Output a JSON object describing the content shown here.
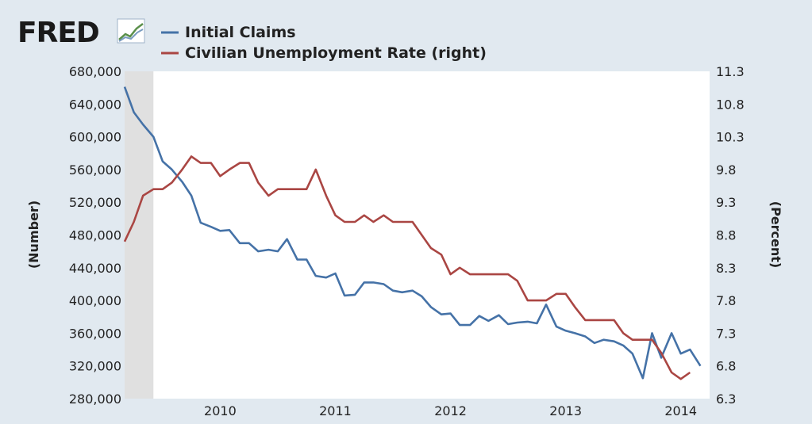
{
  "brand": {
    "logo_text": "FRED"
  },
  "colors": {
    "claims": "#4572a7",
    "unemployment": "#aa4643",
    "background": "#e1e9f0",
    "plot_background": "#ffffff",
    "recession_shade": "#e0e0e0"
  },
  "chart_data": {
    "type": "line",
    "title": "",
    "legend": {
      "placement": "top-left",
      "entries": [
        "Initial Claims",
        "Civilian Unemployment Rate (right)"
      ]
    },
    "xlabel": "",
    "x_ticks": [
      "2010",
      "2011",
      "2012",
      "2013",
      "2014"
    ],
    "x_range": [
      2009.17,
      2014.25
    ],
    "grid": false,
    "recession_shading": [
      [
        2009.17,
        2009.42
      ]
    ],
    "y_left": {
      "label": "(Number)",
      "range": [
        280000,
        680000
      ],
      "ticks": [
        "280,000",
        "320,000",
        "360,000",
        "400,000",
        "440,000",
        "480,000",
        "520,000",
        "560,000",
        "600,000",
        "640,000",
        "680,000"
      ]
    },
    "y_right": {
      "label": "(Percent)",
      "range": [
        6.3,
        11.3
      ],
      "ticks": [
        "6.3",
        "6.8",
        "7.3",
        "7.8",
        "8.3",
        "8.8",
        "9.3",
        "9.8",
        "10.3",
        "10.8",
        "11.3"
      ]
    },
    "series": [
      {
        "name": "Initial Claims",
        "axis": "left",
        "points": [
          [
            2009.17,
            661000
          ],
          [
            2009.25,
            630000
          ],
          [
            2009.33,
            615000
          ],
          [
            2009.42,
            600000
          ],
          [
            2009.5,
            570000
          ],
          [
            2009.58,
            560000
          ],
          [
            2009.67,
            545000
          ],
          [
            2009.75,
            528000
          ],
          [
            2009.83,
            495000
          ],
          [
            2009.92,
            490000
          ],
          [
            2010.0,
            485000
          ],
          [
            2010.08,
            486000
          ],
          [
            2010.17,
            470000
          ],
          [
            2010.25,
            470000
          ],
          [
            2010.33,
            460000
          ],
          [
            2010.42,
            462000
          ],
          [
            2010.5,
            460000
          ],
          [
            2010.58,
            475000
          ],
          [
            2010.67,
            450000
          ],
          [
            2010.75,
            450000
          ],
          [
            2010.83,
            430000
          ],
          [
            2010.92,
            428000
          ],
          [
            2011.0,
            433000
          ],
          [
            2011.08,
            406000
          ],
          [
            2011.17,
            407000
          ],
          [
            2011.25,
            422000
          ],
          [
            2011.33,
            422000
          ],
          [
            2011.42,
            420000
          ],
          [
            2011.5,
            412000
          ],
          [
            2011.58,
            410000
          ],
          [
            2011.67,
            412000
          ],
          [
            2011.75,
            405000
          ],
          [
            2011.83,
            392000
          ],
          [
            2011.92,
            383000
          ],
          [
            2012.0,
            384000
          ],
          [
            2012.08,
            370000
          ],
          [
            2012.17,
            370000
          ],
          [
            2012.25,
            381000
          ],
          [
            2012.33,
            375000
          ],
          [
            2012.42,
            382000
          ],
          [
            2012.5,
            371000
          ],
          [
            2012.58,
            373000
          ],
          [
            2012.67,
            374000
          ],
          [
            2012.75,
            372000
          ],
          [
            2012.83,
            395000
          ],
          [
            2012.92,
            368000
          ],
          [
            2013.0,
            363000
          ],
          [
            2013.08,
            360000
          ],
          [
            2013.17,
            356000
          ],
          [
            2013.25,
            348000
          ],
          [
            2013.33,
            352000
          ],
          [
            2013.42,
            350000
          ],
          [
            2013.5,
            345000
          ],
          [
            2013.58,
            335000
          ],
          [
            2013.67,
            305000
          ],
          [
            2013.75,
            360000
          ],
          [
            2013.83,
            330000
          ],
          [
            2013.92,
            360000
          ],
          [
            2014.0,
            335000
          ],
          [
            2014.08,
            340000
          ],
          [
            2014.17,
            320000
          ]
        ]
      },
      {
        "name": "Civilian Unemployment Rate (right)",
        "axis": "right",
        "points": [
          [
            2009.17,
            8.7
          ],
          [
            2009.25,
            9.0
          ],
          [
            2009.33,
            9.4
          ],
          [
            2009.42,
            9.5
          ],
          [
            2009.5,
            9.5
          ],
          [
            2009.58,
            9.6
          ],
          [
            2009.67,
            9.8
          ],
          [
            2009.75,
            10.0
          ],
          [
            2009.83,
            9.9
          ],
          [
            2009.92,
            9.9
          ],
          [
            2010.0,
            9.7
          ],
          [
            2010.08,
            9.8
          ],
          [
            2010.17,
            9.9
          ],
          [
            2010.25,
            9.9
          ],
          [
            2010.33,
            9.6
          ],
          [
            2010.42,
            9.4
          ],
          [
            2010.5,
            9.5
          ],
          [
            2010.58,
            9.5
          ],
          [
            2010.67,
            9.5
          ],
          [
            2010.75,
            9.5
          ],
          [
            2010.83,
            9.8
          ],
          [
            2010.92,
            9.4
          ],
          [
            2011.0,
            9.1
          ],
          [
            2011.08,
            9.0
          ],
          [
            2011.17,
            9.0
          ],
          [
            2011.25,
            9.1
          ],
          [
            2011.33,
            9.0
          ],
          [
            2011.42,
            9.1
          ],
          [
            2011.5,
            9.0
          ],
          [
            2011.58,
            9.0
          ],
          [
            2011.67,
            9.0
          ],
          [
            2011.75,
            8.8
          ],
          [
            2011.83,
            8.6
          ],
          [
            2011.92,
            8.5
          ],
          [
            2012.0,
            8.2
          ],
          [
            2012.08,
            8.3
          ],
          [
            2012.17,
            8.2
          ],
          [
            2012.25,
            8.2
          ],
          [
            2012.33,
            8.2
          ],
          [
            2012.42,
            8.2
          ],
          [
            2012.5,
            8.2
          ],
          [
            2012.58,
            8.1
          ],
          [
            2012.67,
            7.8
          ],
          [
            2012.75,
            7.8
          ],
          [
            2012.83,
            7.8
          ],
          [
            2012.92,
            7.9
          ],
          [
            2013.0,
            7.9
          ],
          [
            2013.08,
            7.7
          ],
          [
            2013.17,
            7.5
          ],
          [
            2013.25,
            7.5
          ],
          [
            2013.33,
            7.5
          ],
          [
            2013.42,
            7.5
          ],
          [
            2013.5,
            7.3
          ],
          [
            2013.58,
            7.2
          ],
          [
            2013.67,
            7.2
          ],
          [
            2013.75,
            7.2
          ],
          [
            2013.83,
            7.0
          ],
          [
            2013.92,
            6.7
          ],
          [
            2014.0,
            6.6
          ],
          [
            2014.08,
            6.7
          ]
        ]
      }
    ]
  }
}
